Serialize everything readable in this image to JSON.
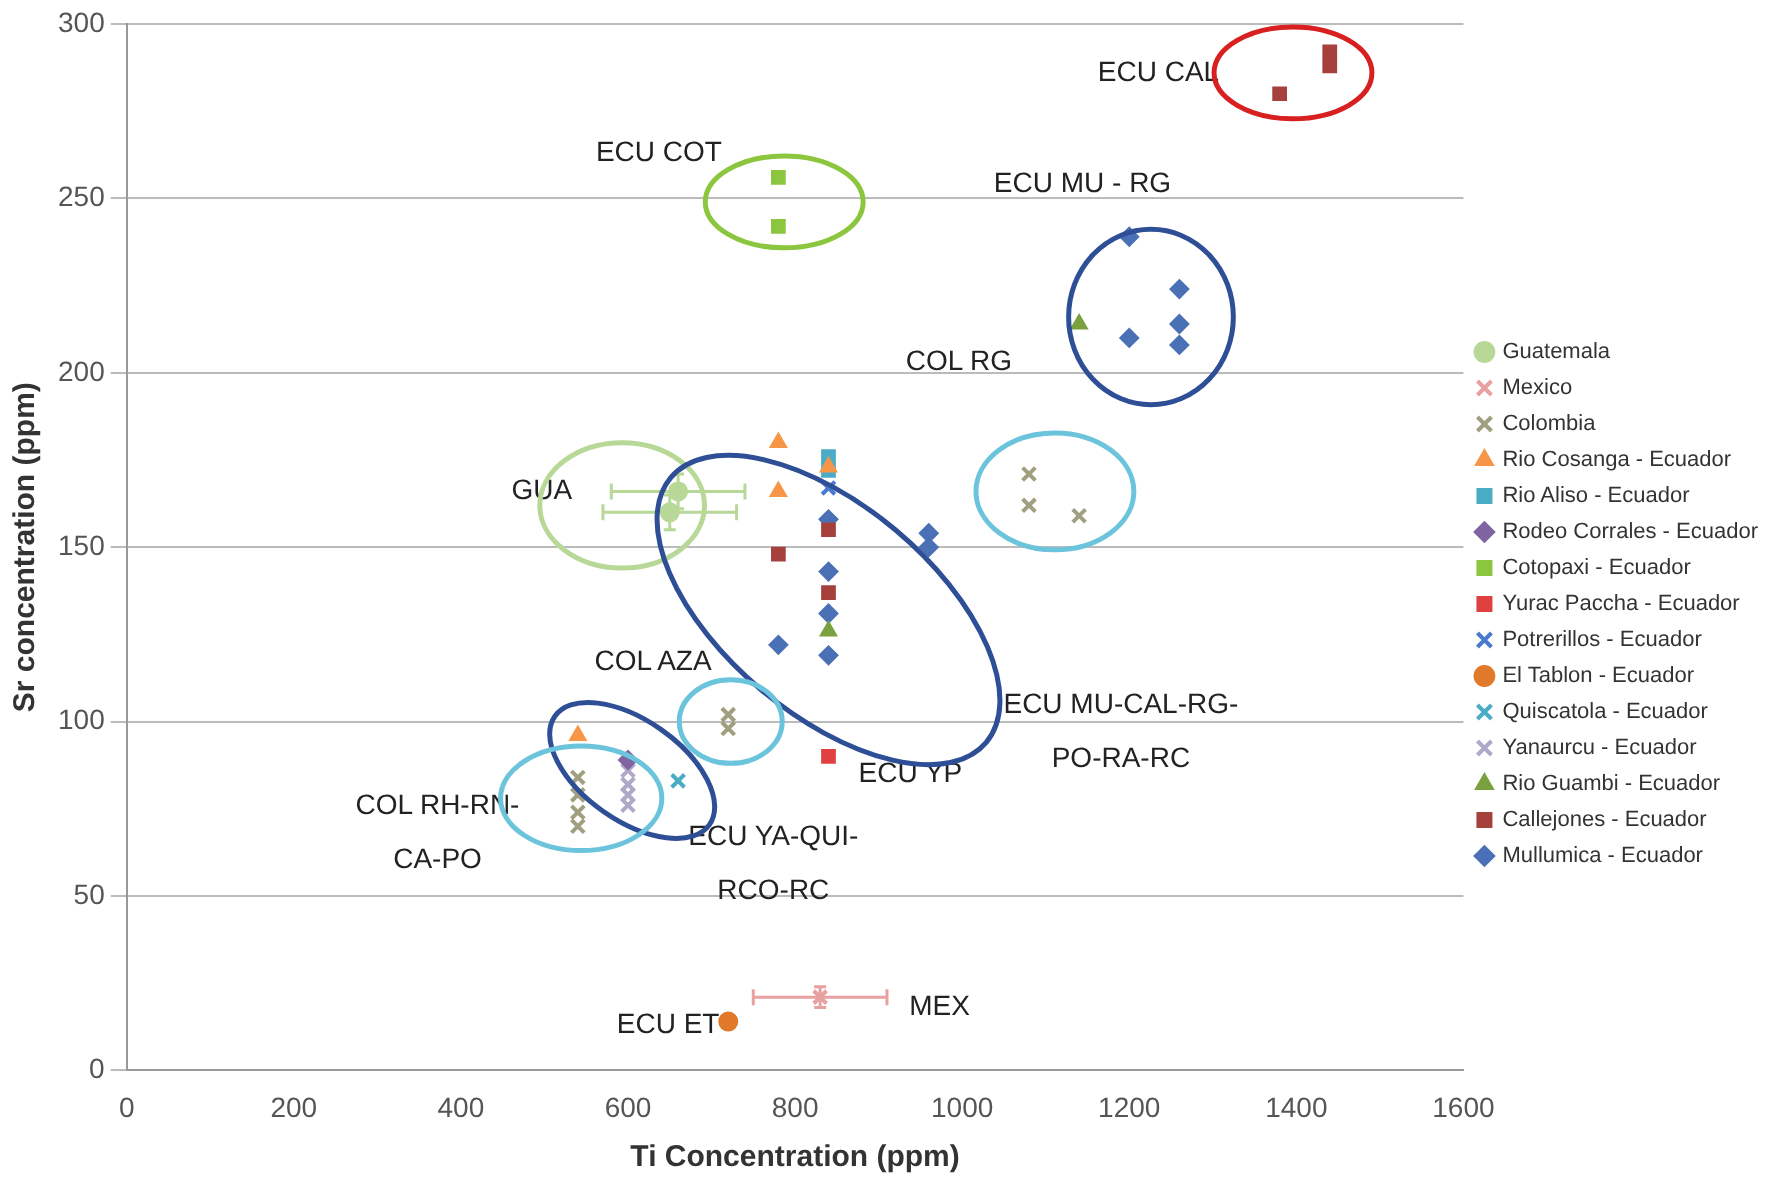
{
  "chart_data": {
    "type": "scatter",
    "xlabel": "Ti Concentration (ppm)",
    "ylabel": "Sr concentration (ppm)",
    "xlim": [
      0,
      1600
    ],
    "xticks": [
      0,
      200,
      400,
      600,
      800,
      1000,
      1200,
      1400,
      1600
    ],
    "ylim": [
      0,
      300
    ],
    "yticks": [
      0,
      50,
      100,
      150,
      200,
      250,
      300
    ],
    "grid": "y",
    "legend": "right",
    "series": [
      {
        "name": "Mullumica - Ecuador",
        "color": "#4a70b5",
        "marker": "diamond",
        "x": [
          780,
          840,
          840,
          840,
          840,
          960,
          960,
          1200,
          1200,
          1260,
          1260,
          1260
        ],
        "values": [
          122,
          158,
          143,
          131,
          119,
          154,
          150,
          239,
          210,
          224,
          214,
          208
        ]
      },
      {
        "name": "Callejones - Ecuador",
        "color": "#a5403c",
        "marker": "square",
        "x": [
          780,
          840,
          840,
          1380,
          1440,
          1440
        ],
        "values": [
          148,
          155,
          137,
          280,
          292,
          288
        ]
      },
      {
        "name": "Rio Guambi - Ecuador",
        "color": "#7aa040",
        "marker": "triangle",
        "x": [
          840,
          1140
        ],
        "values": [
          126,
          214
        ]
      },
      {
        "name": "Yanaurcu - Ecuador",
        "color": "#b0a8c8",
        "marker": "cross",
        "x": [
          600,
          600,
          600,
          600
        ],
        "values": [
          86,
          82,
          79,
          76
        ]
      },
      {
        "name": "Quiscatola - Ecuador",
        "color": "#4bacc6",
        "marker": "cross",
        "x": [
          660
        ],
        "values": [
          83
        ]
      },
      {
        "name": "El Tablon - Ecuador",
        "color": "#e07a2a",
        "marker": "circle",
        "x": [
          720
        ],
        "values": [
          14
        ]
      },
      {
        "name": "Potrerillos - Ecuador",
        "color": "#4a7ad0",
        "marker": "cross",
        "x": [
          840
        ],
        "values": [
          167
        ]
      },
      {
        "name": "Yurac Paccha - Ecuador",
        "color": "#e04040",
        "marker": "square",
        "x": [
          840
        ],
        "values": [
          90
        ]
      },
      {
        "name": "Cotopaxi - Ecuador",
        "color": "#8cc63e",
        "marker": "square",
        "x": [
          780,
          780
        ],
        "values": [
          256,
          242
        ]
      },
      {
        "name": "Rodeo Corrales - Ecuador",
        "color": "#8064a2",
        "marker": "diamond",
        "x": [
          600
        ],
        "values": [
          89
        ]
      },
      {
        "name": "Rio Aliso - Ecuador",
        "color": "#4bacc6",
        "marker": "square",
        "x": [
          840,
          840
        ],
        "values": [
          176,
          172
        ]
      },
      {
        "name": "Rio Cosanga - Ecuador",
        "color": "#f79646",
        "marker": "triangle",
        "x": [
          540,
          780,
          780,
          840
        ],
        "values": [
          96,
          180,
          166,
          173
        ]
      },
      {
        "name": "Colombia",
        "color": "#a0a080",
        "marker": "cross",
        "x": [
          540,
          540,
          540,
          540,
          720,
          720,
          1080,
          1080,
          1140
        ],
        "values": [
          84,
          79,
          74,
          70,
          102,
          98,
          171,
          162,
          159
        ]
      },
      {
        "name": "Mexico",
        "color": "#e8a0a0",
        "marker": "cross",
        "x": [
          830
        ],
        "values": [
          21
        ],
        "xerrors": [
          80
        ],
        "errors": [
          3
        ]
      },
      {
        "name": "Guatemala",
        "color": "#b8d898",
        "marker": "circle",
        "x": [
          660,
          650
        ],
        "values": [
          166,
          160
        ],
        "xerrors": [
          80,
          80
        ],
        "errors": [
          5,
          5
        ]
      }
    ],
    "annotations": [
      "ECU CAL",
      "ECU COT",
      "ECU MU - RG",
      "COL RG",
      "GUA",
      "COL AZA",
      "ECU MU-CAL-RG-\nPO-RA-RC",
      "ECU YP",
      "ECU YA-QUI-\nRCO-RC",
      "COL RH-RN-\nCA-PO",
      "ECU ET",
      "MEX"
    ]
  }
}
